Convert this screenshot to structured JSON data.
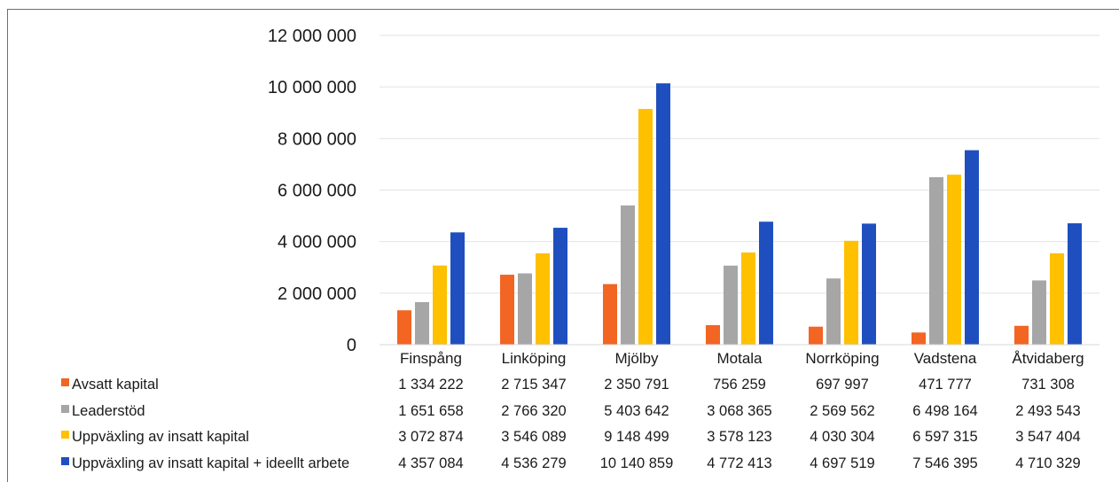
{
  "chart_data": {
    "type": "bar",
    "categories": [
      "Finspång",
      "Linköping",
      "Mjölby",
      "Motala",
      "Norrköping",
      "Vadstena",
      "Åtvidaberg"
    ],
    "series": [
      {
        "name": "Avsatt kapital",
        "color": "#f26522",
        "values": [
          1334222,
          2715347,
          2350791,
          756259,
          697997,
          471777,
          731308
        ],
        "labels": [
          "1 334 222",
          "2 715 347",
          "2 350 791",
          "756 259",
          "697 997",
          "471 777",
          "731 308"
        ]
      },
      {
        "name": "Leaderstöd",
        "color": "#a6a6a6",
        "values": [
          1651658,
          2766320,
          5403642,
          3068365,
          2569562,
          6498164,
          2493543
        ],
        "labels": [
          "1 651 658",
          "2 766 320",
          "5 403 642",
          "3 068 365",
          "2 569 562",
          "6 498 164",
          "2 493 543"
        ]
      },
      {
        "name": "Uppväxling av insatt kapital",
        "color": "#ffc000",
        "values": [
          3072874,
          3546089,
          9148499,
          3578123,
          4030304,
          6597315,
          3547404
        ],
        "labels": [
          "3 072 874",
          "3 546 089",
          "9 148 499",
          "3 578 123",
          "4 030 304",
          "6 597 315",
          "3 547 404"
        ]
      },
      {
        "name": "Uppväxling av insatt kapital + ideellt arbete",
        "color": "#1f4fbf",
        "values": [
          4357084,
          4536279,
          10140859,
          4772413,
          4697519,
          7546395,
          4710329
        ],
        "labels": [
          "4 357 084",
          "4 536 279",
          "10 140 859",
          "4 772 413",
          "4 697 519",
          "7 546 395",
          "4 710 329"
        ]
      }
    ],
    "yticks": [
      0,
      2000000,
      4000000,
      6000000,
      8000000,
      10000000,
      12000000
    ],
    "ytick_labels": [
      "0",
      "2 000 000",
      "4 000 000",
      "6 000 000",
      "8 000 000",
      "10 000 000",
      "12 000 000"
    ],
    "ylim": [
      0,
      12000000
    ],
    "grid": true,
    "legend": "data-table",
    "title": "",
    "xlabel": "",
    "ylabel": ""
  }
}
